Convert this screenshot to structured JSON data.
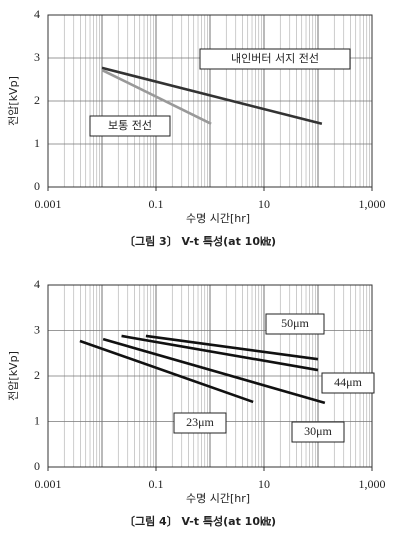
{
  "chart_data": [
    {
      "type": "line",
      "caption": "〔그림 3〕 V-t 특성(at 10㎑)",
      "xlabel": "수명 시간[hr]",
      "ylabel": "전압[kVp]",
      "xscale": "log",
      "xlim": [
        0.001,
        1000
      ],
      "ylim": [
        0,
        4
      ],
      "xticks": [
        0.001,
        0.1,
        10,
        {
          "value": 1000,
          "label": "1,000"
        }
      ],
      "yticks": [
        0,
        1,
        2,
        3,
        4
      ],
      "grid": true,
      "series": [
        {
          "name": "내인버터 서지 전선",
          "color": "#333333",
          "x": [
            0.01,
            118
          ],
          "y": [
            2.77,
            1.47
          ]
        },
        {
          "name": "보통 전선",
          "color": "#999999",
          "x": [
            0.01,
            1.05
          ],
          "y": [
            2.72,
            1.47
          ]
        }
      ]
    },
    {
      "type": "line",
      "caption": "〔그림 4〕 V-t 특성(at 10㎑)",
      "xlabel": "수명 시간[hr]",
      "ylabel": "전압[kVp]",
      "xscale": "log",
      "xlim": [
        0.001,
        1000
      ],
      "ylim": [
        0,
        4
      ],
      "xticks": [
        0.001,
        0.1,
        10,
        {
          "value": 1000,
          "label": "1,000"
        }
      ],
      "yticks": [
        0,
        1,
        2,
        3,
        4
      ],
      "grid": true,
      "series": [
        {
          "name": "50μm",
          "color": "#111111",
          "x": [
            0.065,
            100
          ],
          "y": [
            2.88,
            2.37
          ]
        },
        {
          "name": "44μm",
          "color": "#111111",
          "x": [
            0.023,
            100
          ],
          "y": [
            2.88,
            2.13
          ]
        },
        {
          "name": "30μm",
          "color": "#111111",
          "x": [
            0.0105,
            134
          ],
          "y": [
            2.81,
            1.41
          ]
        },
        {
          "name": "23μm",
          "color": "#111111",
          "x": [
            0.0039,
            6.3
          ],
          "y": [
            2.77,
            1.43
          ]
        }
      ]
    }
  ]
}
